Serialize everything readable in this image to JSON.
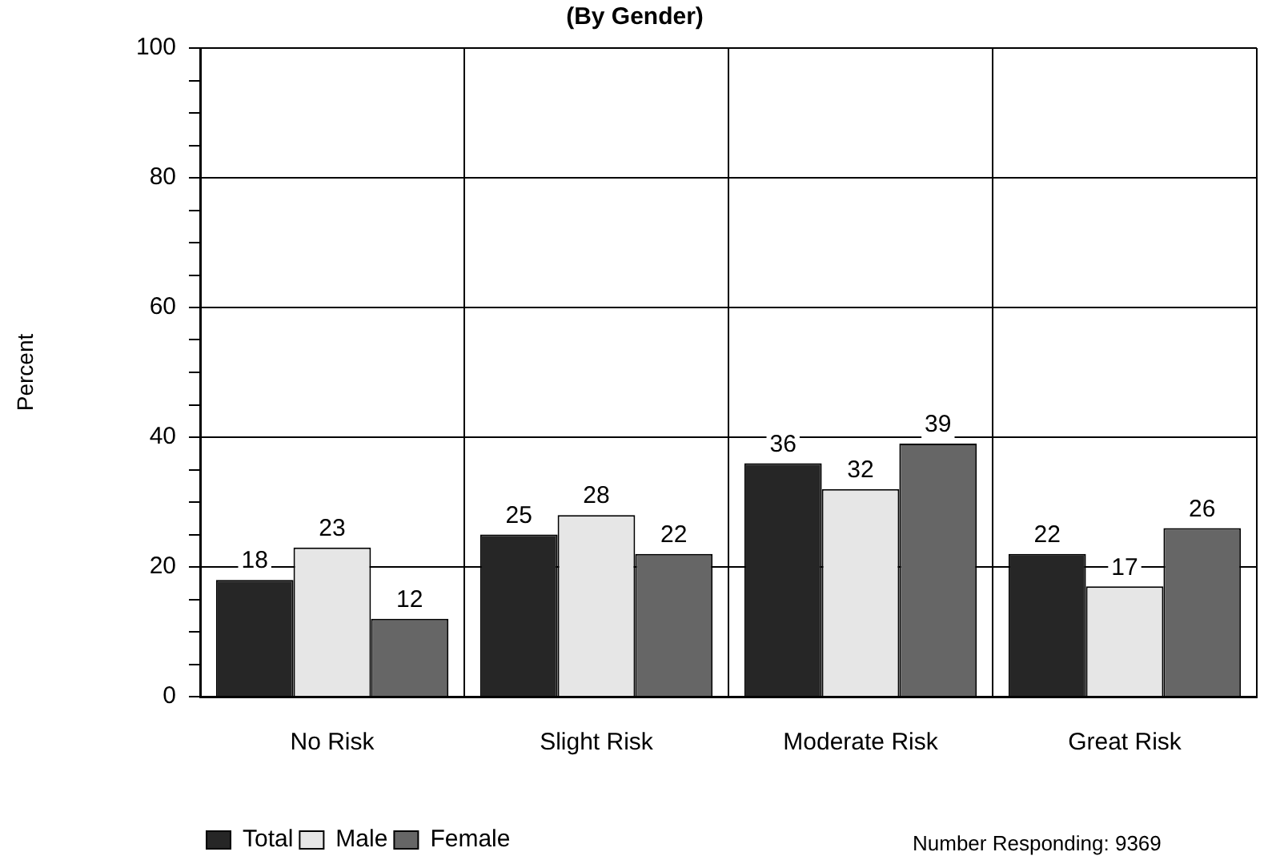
{
  "chart_data": {
    "type": "bar",
    "title": "(By Gender)",
    "ylabel": "Percent",
    "categories": [
      "No Risk",
      "Slight Risk",
      "Moderate Risk",
      "Great Risk"
    ],
    "series": [
      {
        "name": "Total",
        "color": "#262626",
        "values": [
          18,
          25,
          36,
          22
        ]
      },
      {
        "name": "Male",
        "color": "#e6e6e6",
        "values": [
          23,
          28,
          32,
          17
        ]
      },
      {
        "name": "Female",
        "color": "#666666",
        "values": [
          12,
          22,
          39,
          26
        ]
      }
    ],
    "ylim": [
      0,
      100
    ],
    "yticks": [
      0,
      {
        "value": 5,
        "label": null
      },
      {
        "value": 10,
        "label": null
      },
      {
        "value": 15,
        "label": null
      },
      20,
      {
        "value": 25,
        "label": null
      },
      {
        "value": 30,
        "label": null
      },
      {
        "value": 35,
        "label": null
      },
      40,
      {
        "value": 45,
        "label": null
      },
      {
        "value": 50,
        "label": null
      },
      {
        "value": 55,
        "label": null
      },
      60,
      {
        "value": 65,
        "label": null
      },
      {
        "value": 70,
        "label": null
      },
      {
        "value": 75,
        "label": null
      },
      80,
      {
        "value": 85,
        "label": null
      },
      {
        "value": 90,
        "label": null
      },
      {
        "value": 95,
        "label": null
      },
      100
    ],
    "grid": true,
    "legend": "bottom left",
    "data_labels": true,
    "annotations": [
      "Number Responding: 9369"
    ]
  }
}
